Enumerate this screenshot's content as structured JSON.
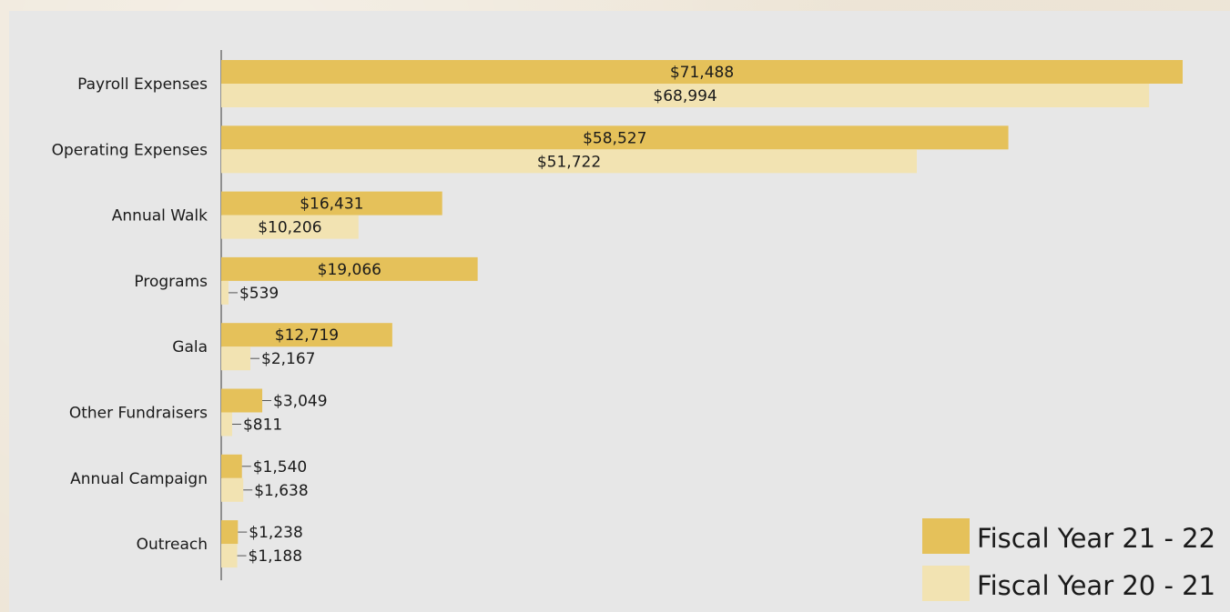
{
  "chart_data": {
    "type": "bar",
    "orientation": "horizontal",
    "categories": [
      "Payroll Expenses",
      "Operating Expenses",
      "Annual Walk",
      "Programs",
      "Gala",
      "Other Fundraisers",
      "Annual Campaign",
      "Outreach"
    ],
    "series": [
      {
        "name": "Fiscal Year 21 - 22",
        "color": "#e5c15a",
        "values": [
          71488,
          58527,
          16431,
          19066,
          12719,
          3049,
          1540,
          1238
        ],
        "labels": [
          "$71,488",
          "$58,527",
          "$16,431",
          "$19,066",
          "$12,719",
          "$3,049",
          "$1,540",
          "$1,238"
        ]
      },
      {
        "name": "Fiscal Year 20 - 21",
        "color": "#f2e3b2",
        "values": [
          68994,
          51722,
          10206,
          539,
          2167,
          811,
          1638,
          1188
        ],
        "labels": [
          "$68,994",
          "$51,722",
          "$10,206",
          "$539",
          "$2,167",
          "$811",
          "$1,638",
          "$1,188"
        ]
      }
    ],
    "title": "",
    "xlabel": "",
    "ylabel": "",
    "grid": false,
    "legend": "bottom-right"
  }
}
